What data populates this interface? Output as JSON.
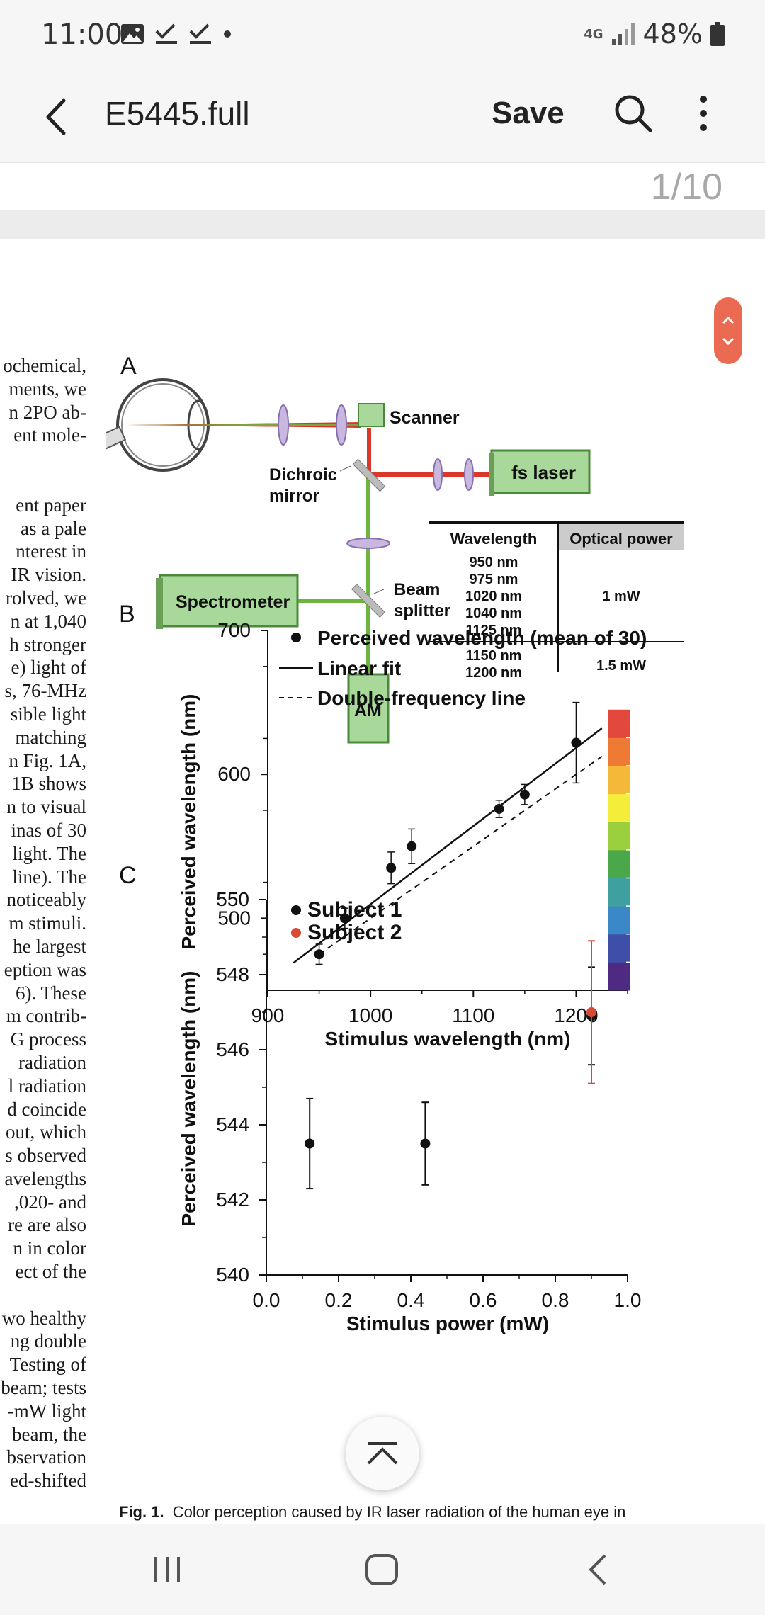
{
  "status_bar": {
    "time": "11:00",
    "network": "4G",
    "battery": "48%",
    "icons": [
      "image-icon",
      "check-icon",
      "check-icon",
      "dot-icon",
      "signal-icon",
      "battery-icon"
    ]
  },
  "app_bar": {
    "title": "E5445.full",
    "save_label": "Save",
    "icons": [
      "back-arrow-icon",
      "search-icon",
      "more-vert-icon"
    ]
  },
  "pager": {
    "page_indicator": "1/10"
  },
  "body_text": [
    "ochemical,",
    "ments, we",
    "n 2PO ab-",
    "ent mole-",
    "",
    "",
    "ent paper",
    "as a pale",
    "nterest in",
    "IR vision.",
    "rolved, we",
    "n at 1,040",
    "h stronger",
    "e) light of",
    "s, 76-MHz",
    "sible light",
    "matching",
    "n Fig. 1A,",
    "1B shows",
    "n to visual",
    "inas of 30",
    "light. The",
    "line). The",
    "noticeably",
    "m stimuli.",
    "he largest",
    "eption was",
    "6). These",
    "m contrib-",
    "G process",
    "radiation",
    "l radiation",
    "d coincide",
    "out, which",
    "s observed",
    "avelengths",
    ",020- and",
    "re are also",
    "n in color",
    "ect of the",
    "",
    "wo healthy",
    "ng double",
    "Testing of",
    "beam; tests",
    "-mW light",
    "beam, the",
    "bservation",
    "ed-shifted"
  ],
  "figure": {
    "panel_labels": {
      "a": "A",
      "b": "B",
      "c": "C"
    },
    "panel_a": {
      "scanner": "Scanner",
      "fs_laser": "fs laser",
      "dichroic_line1": "Dichroic",
      "dichroic_line2": "mirror",
      "spectrometer": "Spectrometer",
      "beam_splitter_line1": "Beam",
      "beam_splitter_line2": "splitter",
      "am": "AM",
      "table": {
        "headers": [
          "Wavelength",
          "Optical power"
        ],
        "rows": [
          {
            "wavelengths": [
              "950 nm",
              "975 nm",
              "1020 nm",
              "1040 nm",
              "1125 nm"
            ],
            "power": "1 mW"
          },
          {
            "wavelengths": [
              "1150 nm",
              "1200 nm"
            ],
            "power": "1.5 mW"
          }
        ]
      },
      "colors": {
        "ir_beam": "#d9372a",
        "green_beam": "#6db540",
        "box_green": "#a8d89a"
      }
    },
    "caption_lead": "Fig. 1.",
    "caption_text": "Color perception caused by IR laser radiation of the human eye in"
  },
  "chart_data": [
    {
      "type": "scatter",
      "panel": "B",
      "xlabel": "Stimulus wavelength (nm)",
      "ylabel": "Perceived wavelength (nm)",
      "xlim": [
        900,
        1250
      ],
      "ylim": [
        450,
        700
      ],
      "xticks": [
        900,
        1000,
        1100,
        1200
      ],
      "yticks": [
        500,
        600,
        700
      ],
      "legend_position": "top",
      "legend": [
        "Perceived wavelength (mean of 30)",
        "Linear fit",
        "Double-frequency line"
      ],
      "series": [
        {
          "name": "Perceived wavelength (mean of 30)",
          "points": [
            {
              "x": 950,
              "y": 475,
              "err": 7
            },
            {
              "x": 975,
              "y": 500,
              "err": 7
            },
            {
              "x": 1020,
              "y": 535,
              "err": 11
            },
            {
              "x": 1040,
              "y": 550,
              "err": 12
            },
            {
              "x": 1125,
              "y": 576,
              "err": 6
            },
            {
              "x": 1150,
              "y": 586,
              "err": 7
            },
            {
              "x": 1200,
              "y": 622,
              "err": 28
            }
          ]
        }
      ],
      "lines": [
        {
          "name": "Linear fit",
          "style": "solid",
          "from": [
            925,
            469
          ],
          "to": [
            1225,
            632
          ]
        },
        {
          "name": "Double-frequency line",
          "style": "dashed",
          "from": [
            950,
            475
          ],
          "to": [
            1225,
            612.5
          ]
        }
      ],
      "colorbar": {
        "range": [
          450,
          645
        ],
        "colors": [
          "#4e2a82",
          "#3f4ea8",
          "#3a88c8",
          "#3fa0a0",
          "#4aa84a",
          "#9ccf3e",
          "#f4ee3a",
          "#f5b93a",
          "#ef7a36",
          "#e2483c"
        ]
      }
    },
    {
      "type": "scatter",
      "panel": "C",
      "xlabel": "Stimulus power (mW)",
      "ylabel": "Perceived wavelength (nm)",
      "xlim": [
        0.0,
        1.0
      ],
      "ylim": [
        540,
        550
      ],
      "xticks": [
        "0.0",
        "0.2",
        "0.4",
        "0.6",
        "0.8",
        "1.0"
      ],
      "yticks": [
        540,
        542,
        544,
        546,
        548,
        550
      ],
      "legend_position": "top-left",
      "series": [
        {
          "name": "Subject 1",
          "color": "#111111",
          "points": [
            {
              "x": 0.12,
              "y": 543.5,
              "err": 1.2
            },
            {
              "x": 0.44,
              "y": 543.5,
              "err": 1.1
            },
            {
              "x": 0.9,
              "y": 546.9,
              "err": 1.3
            }
          ]
        },
        {
          "name": "Subject 2",
          "color": "#d84a33",
          "points": [
            {
              "x": 0.9,
              "y": 547.0,
              "err": 1.9
            }
          ]
        }
      ]
    }
  ]
}
